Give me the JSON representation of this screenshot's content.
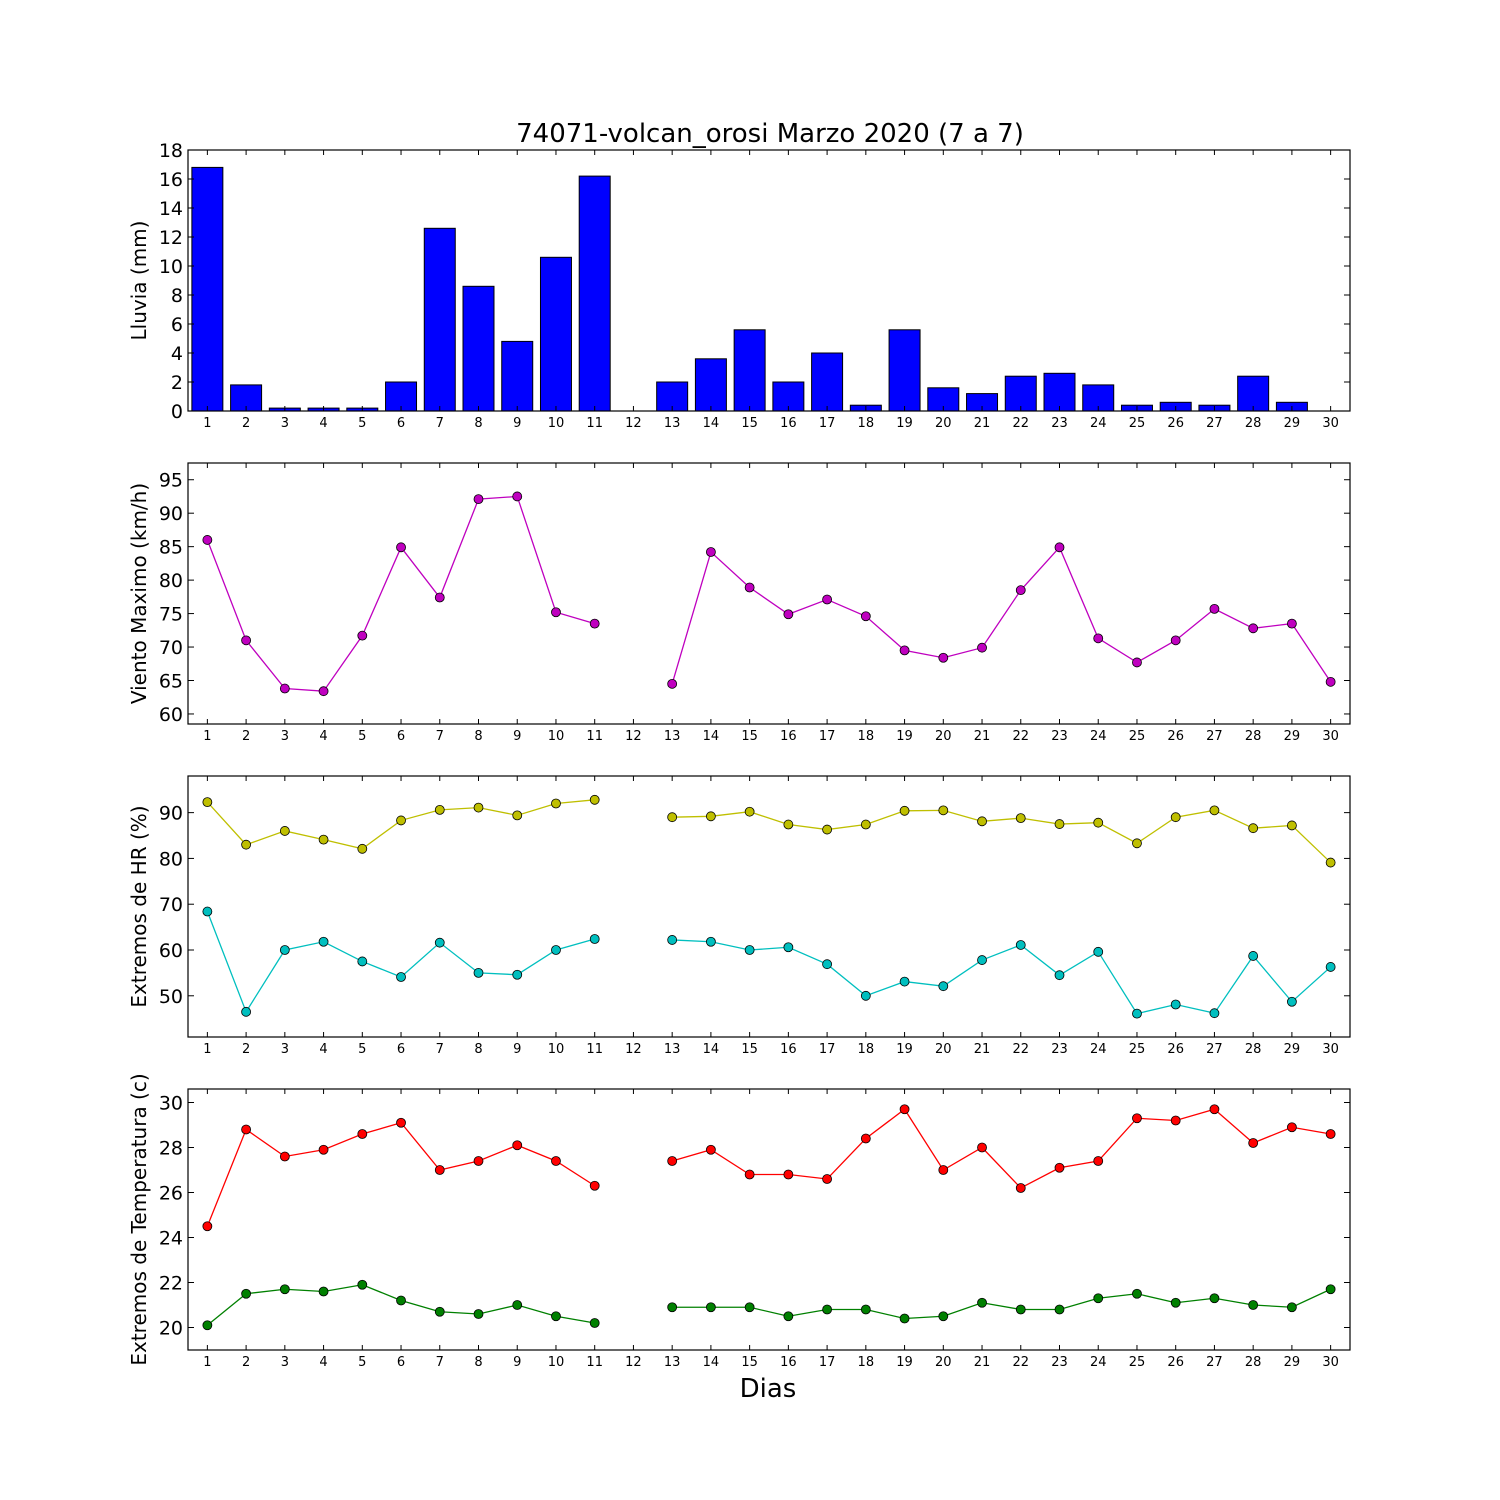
{
  "title": "74071-volcan_orosi Marzo 2020  (7 a 7)",
  "xlabel": "Dias",
  "days": [
    1,
    2,
    3,
    4,
    5,
    6,
    7,
    8,
    9,
    10,
    11,
    12,
    13,
    14,
    15,
    16,
    17,
    18,
    19,
    20,
    21,
    22,
    23,
    24,
    25,
    26,
    27,
    28,
    29,
    30
  ],
  "colors": {
    "rain": "#0000ff",
    "wind": "#bf00bf",
    "hr_max": "#bfbf00",
    "hr_min": "#00bfbf",
    "t_max": "#ff0000",
    "t_min": "#008000"
  },
  "chart_data": [
    {
      "type": "bar",
      "id": "rain",
      "ylabel": "Lluvia (mm)",
      "ylim": [
        0,
        18
      ],
      "yticks": [
        0,
        2,
        4,
        6,
        8,
        10,
        12,
        14,
        16,
        18
      ],
      "x": [
        1,
        2,
        3,
        4,
        5,
        6,
        7,
        8,
        9,
        10,
        11,
        12,
        13,
        14,
        15,
        16,
        17,
        18,
        19,
        20,
        21,
        22,
        23,
        24,
        25,
        26,
        27,
        28,
        29,
        30
      ],
      "series": [
        {
          "color": "#0000ff",
          "values": [
            16.8,
            1.8,
            0.2,
            0.2,
            0.2,
            2.0,
            12.6,
            8.6,
            4.8,
            10.6,
            16.2,
            0,
            2.0,
            3.6,
            5.6,
            2.0,
            4.0,
            0.4,
            5.6,
            1.6,
            1.2,
            2.4,
            2.6,
            1.8,
            0.4,
            0.6,
            0.4,
            2.4,
            0.6,
            0
          ]
        }
      ]
    },
    {
      "type": "line",
      "id": "wind",
      "ylabel": "Viento Maximo (km/h)",
      "ylim": [
        58.5,
        97.5
      ],
      "yticks": [
        60,
        65,
        70,
        75,
        80,
        85,
        90,
        95
      ],
      "x": [
        1,
        2,
        3,
        4,
        5,
        6,
        7,
        8,
        9,
        10,
        11,
        12,
        13,
        14,
        15,
        16,
        17,
        18,
        19,
        20,
        21,
        22,
        23,
        24,
        25,
        26,
        27,
        28,
        29,
        30
      ],
      "series": [
        {
          "color": "#bf00bf",
          "values": [
            86.0,
            71.0,
            63.8,
            63.4,
            71.7,
            84.9,
            77.4,
            92.1,
            92.5,
            75.2,
            73.5,
            null,
            64.5,
            84.2,
            78.9,
            74.9,
            77.1,
            74.6,
            69.5,
            68.4,
            69.9,
            78.5,
            84.9,
            71.3,
            67.7,
            71.0,
            75.7,
            72.8,
            73.5,
            64.8
          ]
        }
      ]
    },
    {
      "type": "line",
      "id": "hr",
      "ylabel": "Extremos de HR (%)",
      "ylim": [
        41,
        98
      ],
      "yticks": [
        50,
        60,
        70,
        80,
        90
      ],
      "x": [
        1,
        2,
        3,
        4,
        5,
        6,
        7,
        8,
        9,
        10,
        11,
        12,
        13,
        14,
        15,
        16,
        17,
        18,
        19,
        20,
        21,
        22,
        23,
        24,
        25,
        26,
        27,
        28,
        29,
        30
      ],
      "series": [
        {
          "color": "#bfbf00",
          "values": [
            92.3,
            83.0,
            86.0,
            84.1,
            82.1,
            88.3,
            90.6,
            91.1,
            89.4,
            92.0,
            92.8,
            null,
            89.0,
            89.2,
            90.2,
            87.4,
            86.3,
            87.4,
            90.4,
            90.5,
            88.1,
            88.8,
            87.5,
            87.8,
            83.3,
            89.0,
            90.5,
            86.6,
            87.2,
            79.1
          ]
        },
        {
          "color": "#00bfbf",
          "values": [
            68.4,
            46.5,
            60.0,
            61.8,
            57.5,
            54.1,
            61.6,
            55.0,
            54.6,
            60.0,
            62.4,
            null,
            62.2,
            61.8,
            60.0,
            60.6,
            56.9,
            50.0,
            53.1,
            52.1,
            57.8,
            61.1,
            54.5,
            59.6,
            46.1,
            48.1,
            46.2,
            58.7,
            48.7,
            56.3
          ]
        }
      ]
    },
    {
      "type": "line",
      "id": "temp",
      "ylabel": "Extremos de Temperatura (c)",
      "ylim": [
        19.0,
        30.6
      ],
      "yticks": [
        20,
        22,
        24,
        26,
        28,
        30
      ],
      "x": [
        1,
        2,
        3,
        4,
        5,
        6,
        7,
        8,
        9,
        10,
        11,
        12,
        13,
        14,
        15,
        16,
        17,
        18,
        19,
        20,
        21,
        22,
        23,
        24,
        25,
        26,
        27,
        28,
        29,
        30
      ],
      "series": [
        {
          "color": "#ff0000",
          "values": [
            24.5,
            28.8,
            27.6,
            27.9,
            28.6,
            29.1,
            27.0,
            27.4,
            28.1,
            27.4,
            26.3,
            null,
            27.4,
            27.9,
            26.8,
            26.8,
            26.6,
            28.4,
            29.7,
            27.0,
            28.0,
            26.2,
            27.1,
            27.4,
            29.3,
            29.2,
            29.7,
            28.2,
            28.9,
            28.6
          ]
        },
        {
          "color": "#008000",
          "values": [
            20.1,
            21.5,
            21.7,
            21.6,
            21.9,
            21.2,
            20.7,
            20.6,
            21.0,
            20.5,
            20.2,
            null,
            20.9,
            20.9,
            20.9,
            20.5,
            20.8,
            20.8,
            20.4,
            20.5,
            21.1,
            20.8,
            20.8,
            21.3,
            21.5,
            21.1,
            21.3,
            21.0,
            20.9,
            21.7
          ]
        }
      ]
    }
  ]
}
